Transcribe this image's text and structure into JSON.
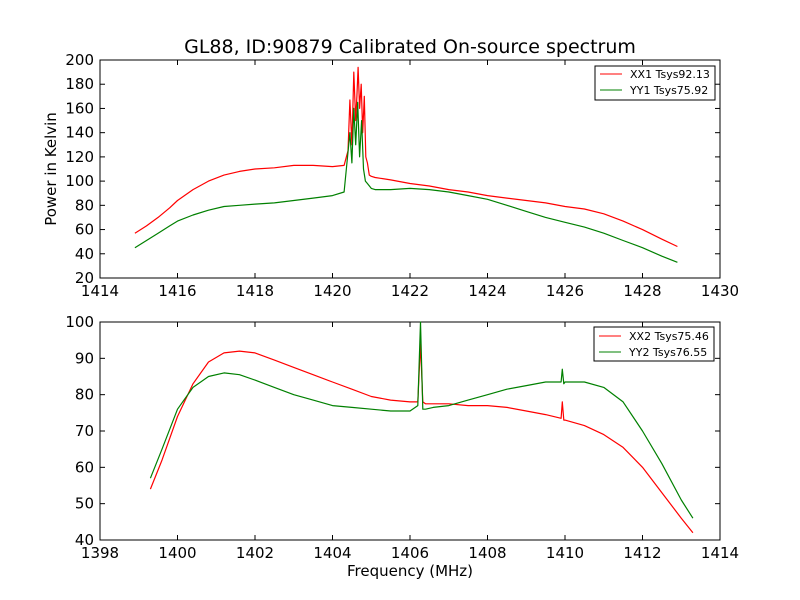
{
  "chart_data": [
    {
      "type": "line",
      "title": "GL88, ID:90879 Calibrated On-source spectrum",
      "xlabel": "",
      "ylabel": "Power in Kelvin",
      "xlim": [
        1414,
        1430
      ],
      "ylim": [
        20,
        200
      ],
      "xticks": [
        "1414",
        "1416",
        "1418",
        "1420",
        "1422",
        "1424",
        "1426",
        "1428",
        "1430"
      ],
      "yticks": [
        "20",
        "40",
        "60",
        "80",
        "100",
        "120",
        "140",
        "160",
        "180",
        "200"
      ],
      "legend_position": "top-right",
      "series": [
        {
          "name": "XX1 Tsys92.13",
          "color": "#ff0000",
          "x": [
            1414.9,
            1415.2,
            1415.5,
            1415.8,
            1416.0,
            1416.4,
            1416.8,
            1417.2,
            1417.6,
            1418.0,
            1418.5,
            1419.0,
            1419.5,
            1420.0,
            1420.3,
            1420.4,
            1420.45,
            1420.5,
            1420.55,
            1420.6,
            1420.63,
            1420.66,
            1420.7,
            1420.74,
            1420.78,
            1420.82,
            1420.86,
            1420.9,
            1420.95,
            1421.0,
            1421.1,
            1421.5,
            1422.0,
            1422.5,
            1423.0,
            1423.5,
            1424.0,
            1424.5,
            1425.0,
            1425.5,
            1426.0,
            1426.5,
            1427.0,
            1427.5,
            1428.0,
            1428.5,
            1428.9
          ],
          "y": [
            57,
            63,
            70,
            78,
            84,
            93,
            100,
            105,
            108,
            110,
            111,
            113,
            113,
            112,
            113,
            125,
            167,
            130,
            190,
            150,
            170,
            194,
            160,
            180,
            140,
            170,
            120,
            115,
            105,
            104,
            103,
            101,
            98,
            96,
            93,
            91,
            88,
            86,
            84,
            82,
            79,
            77,
            73,
            67,
            60,
            52,
            46
          ]
        },
        {
          "name": "YY1 Tsys75.92",
          "color": "#008000",
          "x": [
            1414.9,
            1415.2,
            1415.5,
            1415.8,
            1416.0,
            1416.4,
            1416.8,
            1417.2,
            1417.6,
            1418.0,
            1418.5,
            1419.0,
            1419.5,
            1420.0,
            1420.3,
            1420.45,
            1420.5,
            1420.55,
            1420.6,
            1420.65,
            1420.7,
            1420.75,
            1420.8,
            1420.85,
            1420.9,
            1421.0,
            1421.1,
            1421.5,
            1422.0,
            1422.5,
            1423.0,
            1423.5,
            1424.0,
            1424.5,
            1425.0,
            1425.5,
            1426.0,
            1426.5,
            1427.0,
            1427.5,
            1428.0,
            1428.5,
            1428.9
          ],
          "y": [
            45,
            51,
            57,
            63,
            67,
            72,
            76,
            79,
            80,
            81,
            82,
            84,
            86,
            88,
            91,
            140,
            115,
            160,
            130,
            165,
            120,
            150,
            110,
            100,
            98,
            94,
            93,
            93,
            94,
            93,
            91,
            88,
            85,
            80,
            75,
            70,
            66,
            62,
            57,
            51,
            45,
            38,
            33
          ]
        }
      ]
    },
    {
      "type": "line",
      "title": "",
      "xlabel": "Frequency (MHz)",
      "ylabel": "",
      "xlim": [
        1398,
        1414
      ],
      "ylim": [
        40,
        100
      ],
      "xticks": [
        "1398",
        "1400",
        "1402",
        "1404",
        "1406",
        "1408",
        "1410",
        "1412",
        "1414"
      ],
      "yticks": [
        "40",
        "50",
        "60",
        "70",
        "80",
        "90",
        "100"
      ],
      "legend_position": "top-right",
      "series": [
        {
          "name": "XX2 Tsys75.46",
          "color": "#ff0000",
          "x": [
            1399.3,
            1399.6,
            1400.0,
            1400.4,
            1400.8,
            1401.2,
            1401.6,
            1402.0,
            1402.5,
            1403.0,
            1403.5,
            1404.0,
            1404.5,
            1405.0,
            1405.5,
            1406.0,
            1406.2,
            1406.27,
            1406.33,
            1406.4,
            1406.6,
            1407.0,
            1407.5,
            1408.0,
            1408.5,
            1409.0,
            1409.5,
            1409.9,
            1409.93,
            1409.97,
            1410.0,
            1410.5,
            1411.0,
            1411.5,
            1412.0,
            1412.5,
            1413.0,
            1413.3
          ],
          "y": [
            54,
            62,
            74,
            83,
            89,
            91.5,
            92,
            91.5,
            89.5,
            87.5,
            85.5,
            83.5,
            81.5,
            79.5,
            78.5,
            78,
            78,
            94,
            78,
            77.5,
            77.5,
            77.5,
            77,
            77,
            76.5,
            75.5,
            74.5,
            73.5,
            78,
            73,
            73,
            71.5,
            69,
            65.5,
            60,
            53,
            46,
            42
          ]
        },
        {
          "name": "YY2 Tsys76.55",
          "color": "#008000",
          "x": [
            1399.3,
            1399.6,
            1400.0,
            1400.4,
            1400.8,
            1401.2,
            1401.6,
            1402.0,
            1402.5,
            1403.0,
            1403.5,
            1404.0,
            1404.5,
            1405.0,
            1405.5,
            1406.0,
            1406.2,
            1406.27,
            1406.33,
            1406.4,
            1406.6,
            1407.0,
            1407.5,
            1408.0,
            1408.5,
            1409.0,
            1409.5,
            1409.9,
            1409.93,
            1409.97,
            1410.0,
            1410.5,
            1411.0,
            1411.5,
            1412.0,
            1412.5,
            1413.0,
            1413.3
          ],
          "y": [
            57,
            65,
            76,
            82,
            85,
            86,
            85.5,
            84,
            82,
            80,
            78.5,
            77,
            76.5,
            76,
            75.5,
            75.5,
            77,
            100,
            76,
            76,
            76.5,
            77,
            78.5,
            80,
            81.5,
            82.5,
            83.5,
            83.5,
            87,
            83,
            83.5,
            83.5,
            82,
            78,
            70,
            61,
            51,
            46
          ]
        }
      ]
    }
  ]
}
